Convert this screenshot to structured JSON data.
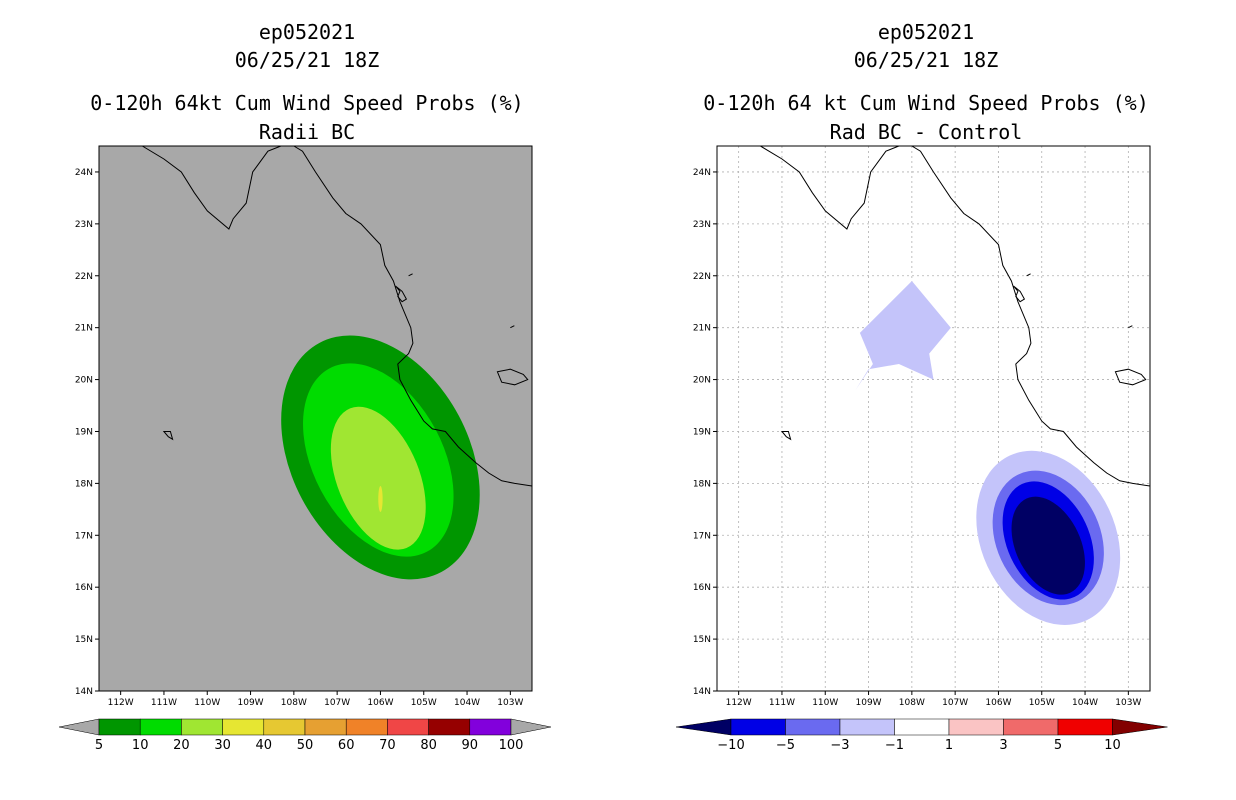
{
  "chart_data": [
    {
      "type": "heatmap",
      "id": "left",
      "titles": [
        "ep052021",
        "06/25/21 18Z",
        "0-120h 64kt Cum Wind Speed Probs (%)",
        "Radii BC"
      ],
      "x_ticks": [
        "112W",
        "111W",
        "110W",
        "109W",
        "108W",
        "107W",
        "106W",
        "105W",
        "104W",
        "103W"
      ],
      "y_ticks": [
        "14N",
        "15N",
        "16N",
        "17N",
        "18N",
        "19N",
        "20N",
        "21N",
        "22N",
        "23N",
        "24N"
      ],
      "xlim": [
        -112.5,
        -102.5
      ],
      "ylim": [
        14,
        24.5
      ],
      "grid": false,
      "colorbar": {
        "labels": [
          "5",
          "10",
          "20",
          "30",
          "40",
          "50",
          "60",
          "70",
          "80",
          "90",
          "100"
        ],
        "colors": [
          "#009600",
          "#00dc00",
          "#a0e632",
          "#e6e632",
          "#e6c832",
          "#e6a032",
          "#f08228",
          "#f04646",
          "#960000",
          "#8200dc"
        ]
      },
      "fields": [
        {
          "level": "5-10",
          "color": "#009600",
          "center": [
            -106.0,
            18.5
          ],
          "radii": [
            2.05,
            2.5
          ],
          "rotation_deg": -28
        },
        {
          "level": "10-20",
          "color": "#00dc00",
          "center": [
            -106.05,
            18.45
          ],
          "radii": [
            1.5,
            2.0
          ],
          "rotation_deg": -28
        },
        {
          "level": "20-30",
          "color": "#a0e632",
          "center": [
            -106.05,
            18.1
          ],
          "radii": [
            0.95,
            1.45
          ],
          "rotation_deg": -22
        },
        {
          "level": "30-40",
          "color": "#e6e632",
          "center": [
            -106.0,
            17.7
          ],
          "radii": [
            0.05,
            0.25
          ],
          "rotation_deg": 0
        }
      ]
    },
    {
      "type": "heatmap",
      "id": "right",
      "titles": [
        "ep052021",
        "06/25/21 18Z",
        "0-120h 64 kt Cum Wind Speed Probs (%)",
        "Rad BC - Control"
      ],
      "x_ticks": [
        "112W",
        "111W",
        "110W",
        "109W",
        "108W",
        "107W",
        "106W",
        "105W",
        "104W",
        "103W"
      ],
      "y_ticks": [
        "14N",
        "15N",
        "16N",
        "17N",
        "18N",
        "19N",
        "20N",
        "21N",
        "22N",
        "23N",
        "24N"
      ],
      "xlim": [
        -112.5,
        -102.5
      ],
      "ylim": [
        14,
        24.5
      ],
      "grid": true,
      "colorbar": {
        "labels": [
          "-10",
          "-5",
          "-3",
          "-1",
          "1",
          "3",
          "5",
          "10"
        ],
        "colors": [
          "#0000e6",
          "#6a6af0",
          "#c4c4fa",
          "#ffffff",
          "#fac4c4",
          "#f06a6a",
          "#f00000"
        ],
        "low_extend": "#000064",
        "high_extend": "#820000"
      },
      "fields": [
        {
          "level": "-3 to -1",
          "color": "#c4c4fa",
          "center": [
            -104.85,
            16.95
          ],
          "radii": [
            1.55,
            1.75
          ],
          "rotation_deg": -25
        },
        {
          "level": "-5 to -3",
          "color": "#6a6af0",
          "center": [
            -104.85,
            16.95
          ],
          "radii": [
            1.2,
            1.35
          ],
          "rotation_deg": -25
        },
        {
          "level": "-10 to -5",
          "color": "#0000e6",
          "center": [
            -104.85,
            16.9
          ],
          "radii": [
            0.95,
            1.2
          ],
          "rotation_deg": -25
        },
        {
          "level": "< -10",
          "color": "#000064",
          "center": [
            -104.85,
            16.8
          ],
          "radii": [
            0.75,
            1.0
          ],
          "rotation_deg": -25
        },
        {
          "level": "-3 to -1 (north)",
          "color": "#c4c4fa",
          "polygon": [
            [
              -109.3,
              19.8
            ],
            [
              -108.9,
              20.3
            ],
            [
              -109.2,
              20.9
            ],
            [
              -108.0,
              21.9
            ],
            [
              -107.1,
              21.0
            ],
            [
              -107.6,
              20.5
            ],
            [
              -107.5,
              20.0
            ],
            [
              -108.3,
              20.3
            ],
            [
              -109.0,
              20.2
            ]
          ]
        }
      ]
    }
  ]
}
